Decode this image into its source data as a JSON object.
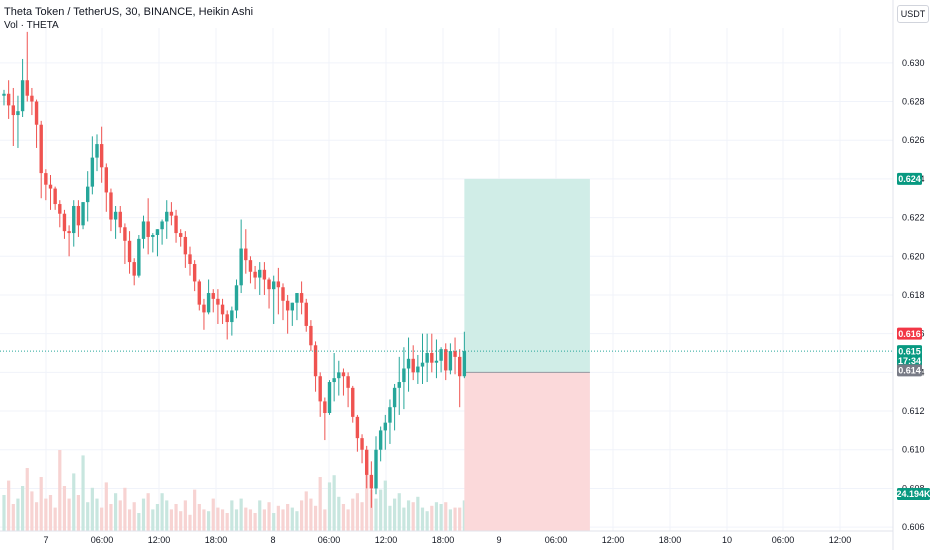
{
  "header": {
    "title": "Theta Token / TetherUS, 30, BINANCE, Heikin Ashi",
    "volume_label": "Vol · THETA",
    "currency": "USDT"
  },
  "colors": {
    "up": "#26a69a",
    "down": "#ef5350",
    "volume_up": "#c8e6df",
    "volume_down": "#f7d3d2",
    "profit_zone": "#d0ede7",
    "loss_zone": "#fbd9da",
    "grid": "#f0f3fa"
  },
  "chart_data": {
    "type": "candlestick",
    "title": "Theta Token / TetherUS, 30, BINANCE, Heikin Ashi",
    "y_ticks": [
      "0.630",
      "0.628",
      "0.626",
      "0.624",
      "0.622",
      "0.620",
      "0.618",
      "0.616",
      "0.614",
      "0.612",
      "0.610",
      "0.608",
      "0.606"
    ],
    "x_ticks": [
      "7",
      "06:00",
      "12:00",
      "18:00",
      "8",
      "06:00",
      "12:00",
      "18:00",
      "9",
      "06:00",
      "12:00",
      "18:00",
      "10",
      "06:00",
      "12:00"
    ],
    "ylim": [
      0.6058,
      0.6318
    ],
    "price_tags": [
      {
        "label": "0.624",
        "value": 0.624,
        "color": "#089981"
      },
      {
        "label": "0.616",
        "value": 0.616,
        "color": "#f23645"
      },
      {
        "label": "0.615",
        "value": 0.6151,
        "color": "#089981"
      },
      {
        "label": "17:34",
        "value": 0.6146,
        "color": "#089981"
      },
      {
        "label": "0.614",
        "value": 0.6141,
        "color": "#787b86"
      }
    ],
    "volume_tag": {
      "label": "24.194K",
      "color": "#089981"
    },
    "last_price": 0.6151,
    "position": {
      "entry": 0.614,
      "target": 0.624,
      "stop": 0.6058,
      "start_candle": 99,
      "end_candle": 126
    },
    "candles": [
      [
        0.6283,
        0.6286,
        0.6278,
        0.6284
      ],
      [
        0.6284,
        0.6291,
        0.6271,
        0.6278
      ],
      [
        0.6278,
        0.6287,
        0.6257,
        0.6273
      ],
      [
        0.6273,
        0.6283,
        0.6256,
        0.6275
      ],
      [
        0.6275,
        0.6302,
        0.6272,
        0.6291
      ],
      [
        0.6291,
        0.6316,
        0.628,
        0.6283
      ],
      [
        0.6283,
        0.6287,
        0.6273,
        0.628
      ],
      [
        0.628,
        0.6281,
        0.6256,
        0.6268
      ],
      [
        0.6268,
        0.627,
        0.623,
        0.6243
      ],
      [
        0.6243,
        0.6245,
        0.6229,
        0.6237
      ],
      [
        0.6237,
        0.6242,
        0.6224,
        0.6235
      ],
      [
        0.6235,
        0.6236,
        0.6224,
        0.6227
      ],
      [
        0.6227,
        0.6229,
        0.6215,
        0.6222
      ],
      [
        0.6222,
        0.6224,
        0.6209,
        0.6213
      ],
      [
        0.6213,
        0.6216,
        0.62,
        0.6212
      ],
      [
        0.6212,
        0.6229,
        0.6205,
        0.6226
      ],
      [
        0.6226,
        0.6229,
        0.621,
        0.6216
      ],
      [
        0.6216,
        0.6228,
        0.6214,
        0.6228
      ],
      [
        0.6228,
        0.6244,
        0.6218,
        0.6236
      ],
      [
        0.6236,
        0.6262,
        0.6232,
        0.6251
      ],
      [
        0.6251,
        0.6263,
        0.6244,
        0.6258
      ],
      [
        0.6258,
        0.6267,
        0.6238,
        0.6246
      ],
      [
        0.6246,
        0.6248,
        0.6223,
        0.6233
      ],
      [
        0.6233,
        0.6235,
        0.6213,
        0.6219
      ],
      [
        0.6219,
        0.6226,
        0.6209,
        0.6223
      ],
      [
        0.6223,
        0.6226,
        0.6212,
        0.6215
      ],
      [
        0.6215,
        0.6217,
        0.6196,
        0.6208
      ],
      [
        0.6208,
        0.6213,
        0.6191,
        0.6197
      ],
      [
        0.6197,
        0.6199,
        0.6185,
        0.619
      ],
      [
        0.619,
        0.6211,
        0.6189,
        0.6209
      ],
      [
        0.6209,
        0.6221,
        0.6204,
        0.6218
      ],
      [
        0.6218,
        0.623,
        0.6201,
        0.621
      ],
      [
        0.621,
        0.6212,
        0.6202,
        0.6211
      ],
      [
        0.6211,
        0.6214,
        0.62,
        0.6214
      ],
      [
        0.6214,
        0.6219,
        0.6206,
        0.6218
      ],
      [
        0.6218,
        0.6229,
        0.6209,
        0.6223
      ],
      [
        0.6223,
        0.6228,
        0.6216,
        0.6221
      ],
      [
        0.6221,
        0.6224,
        0.6207,
        0.6212
      ],
      [
        0.6212,
        0.6214,
        0.6205,
        0.621
      ],
      [
        0.621,
        0.6213,
        0.6194,
        0.6201
      ],
      [
        0.6201,
        0.6205,
        0.619,
        0.6196
      ],
      [
        0.6196,
        0.6198,
        0.6182,
        0.6187
      ],
      [
        0.6187,
        0.6188,
        0.6172,
        0.6175
      ],
      [
        0.6175,
        0.6178,
        0.6162,
        0.6171
      ],
      [
        0.6171,
        0.6188,
        0.617,
        0.6181
      ],
      [
        0.6181,
        0.6183,
        0.6171,
        0.6178
      ],
      [
        0.6178,
        0.6183,
        0.6165,
        0.6175
      ],
      [
        0.6175,
        0.6178,
        0.6165,
        0.617
      ],
      [
        0.617,
        0.6172,
        0.6157,
        0.6166
      ],
      [
        0.6166,
        0.6174,
        0.6159,
        0.6172
      ],
      [
        0.6172,
        0.6188,
        0.6168,
        0.6185
      ],
      [
        0.6185,
        0.6219,
        0.6181,
        0.6204
      ],
      [
        0.6204,
        0.6214,
        0.6191,
        0.6198
      ],
      [
        0.6198,
        0.62,
        0.6186,
        0.6192
      ],
      [
        0.6192,
        0.6195,
        0.6183,
        0.6189
      ],
      [
        0.6189,
        0.6197,
        0.618,
        0.6193
      ],
      [
        0.6193,
        0.6197,
        0.618,
        0.6188
      ],
      [
        0.6188,
        0.6189,
        0.6173,
        0.6183
      ],
      [
        0.6183,
        0.619,
        0.6165,
        0.6187
      ],
      [
        0.6187,
        0.6194,
        0.617,
        0.6184
      ],
      [
        0.6184,
        0.6186,
        0.6167,
        0.6177
      ],
      [
        0.6177,
        0.618,
        0.616,
        0.6172
      ],
      [
        0.6172,
        0.6176,
        0.6164,
        0.6176
      ],
      [
        0.6176,
        0.6181,
        0.6167,
        0.6181
      ],
      [
        0.6181,
        0.6187,
        0.617,
        0.6176
      ],
      [
        0.6176,
        0.6178,
        0.6161,
        0.6164
      ],
      [
        0.6164,
        0.6167,
        0.6151,
        0.6154
      ],
      [
        0.6154,
        0.6156,
        0.613,
        0.6138
      ],
      [
        0.6138,
        0.614,
        0.6117,
        0.6125
      ],
      [
        0.6125,
        0.6127,
        0.6105,
        0.6119
      ],
      [
        0.6119,
        0.6136,
        0.6118,
        0.6135
      ],
      [
        0.6135,
        0.615,
        0.6125,
        0.6137
      ],
      [
        0.6137,
        0.6146,
        0.6128,
        0.614
      ],
      [
        0.614,
        0.6142,
        0.6128,
        0.6138
      ],
      [
        0.6138,
        0.614,
        0.6122,
        0.6132
      ],
      [
        0.6132,
        0.6133,
        0.6114,
        0.6117
      ],
      [
        0.6117,
        0.6118,
        0.6099,
        0.6106
      ],
      [
        0.6106,
        0.6108,
        0.6093,
        0.61
      ],
      [
        0.61,
        0.6102,
        0.608,
        0.6087
      ],
      [
        0.6087,
        0.6094,
        0.607,
        0.608
      ],
      [
        0.608,
        0.6107,
        0.6077,
        0.61
      ],
      [
        0.61,
        0.6112,
        0.6094,
        0.611
      ],
      [
        0.611,
        0.6118,
        0.61,
        0.6114
      ],
      [
        0.6114,
        0.6126,
        0.6103,
        0.6122
      ],
      [
        0.6122,
        0.6134,
        0.611,
        0.6132
      ],
      [
        0.6132,
        0.6148,
        0.6118,
        0.6135
      ],
      [
        0.6135,
        0.6153,
        0.6121,
        0.6142
      ],
      [
        0.6142,
        0.6158,
        0.613,
        0.6147
      ],
      [
        0.6147,
        0.6154,
        0.6136,
        0.614
      ],
      [
        0.614,
        0.6149,
        0.6134,
        0.6143
      ],
      [
        0.6143,
        0.616,
        0.6134,
        0.6145
      ],
      [
        0.6145,
        0.616,
        0.6135,
        0.615
      ],
      [
        0.615,
        0.616,
        0.614,
        0.6145
      ],
      [
        0.6145,
        0.6157,
        0.6137,
        0.6146
      ],
      [
        0.6146,
        0.6153,
        0.614,
        0.6152
      ],
      [
        0.6152,
        0.6155,
        0.6136,
        0.6141
      ],
      [
        0.6141,
        0.6155,
        0.6139,
        0.6151
      ],
      [
        0.6151,
        0.6158,
        0.6139,
        0.6148
      ],
      [
        0.6148,
        0.6152,
        0.6122,
        0.6138
      ],
      [
        0.6138,
        0.6161,
        0.6137,
        0.6151
      ]
    ],
    "volumes": [
      0.2,
      0.28,
      0.15,
      0.18,
      0.25,
      0.35,
      0.22,
      0.16,
      0.3,
      0.18,
      0.2,
      0.13,
      0.45,
      0.25,
      0.18,
      0.32,
      0.2,
      0.42,
      0.16,
      0.24,
      0.18,
      0.13,
      0.27,
      0.15,
      0.21,
      0.17,
      0.24,
      0.12,
      0.16,
      0.1,
      0.18,
      0.21,
      0.12,
      0.15,
      0.21,
      0.17,
      0.12,
      0.15,
      0.11,
      0.17,
      0.09,
      0.23,
      0.15,
      0.12,
      0.11,
      0.18,
      0.13,
      0.12,
      0.1,
      0.17,
      0.12,
      0.18,
      0.13,
      0.12,
      0.1,
      0.17,
      0.12,
      0.16,
      0.1,
      0.14,
      0.12,
      0.15,
      0.13,
      0.11,
      0.17,
      0.22,
      0.18,
      0.14,
      0.3,
      0.12,
      0.27,
      0.31,
      0.19,
      0.15,
      0.12,
      0.18,
      0.21,
      0.16,
      0.4,
      0.23,
      0.18,
      0.23,
      0.28,
      0.14,
      0.18,
      0.21,
      0.13,
      0.17,
      0.16,
      0.19,
      0.13,
      0.11,
      0.14,
      0.16,
      0.15,
      0.16,
      0.12,
      0.13,
      0.13,
      0.17
    ]
  }
}
